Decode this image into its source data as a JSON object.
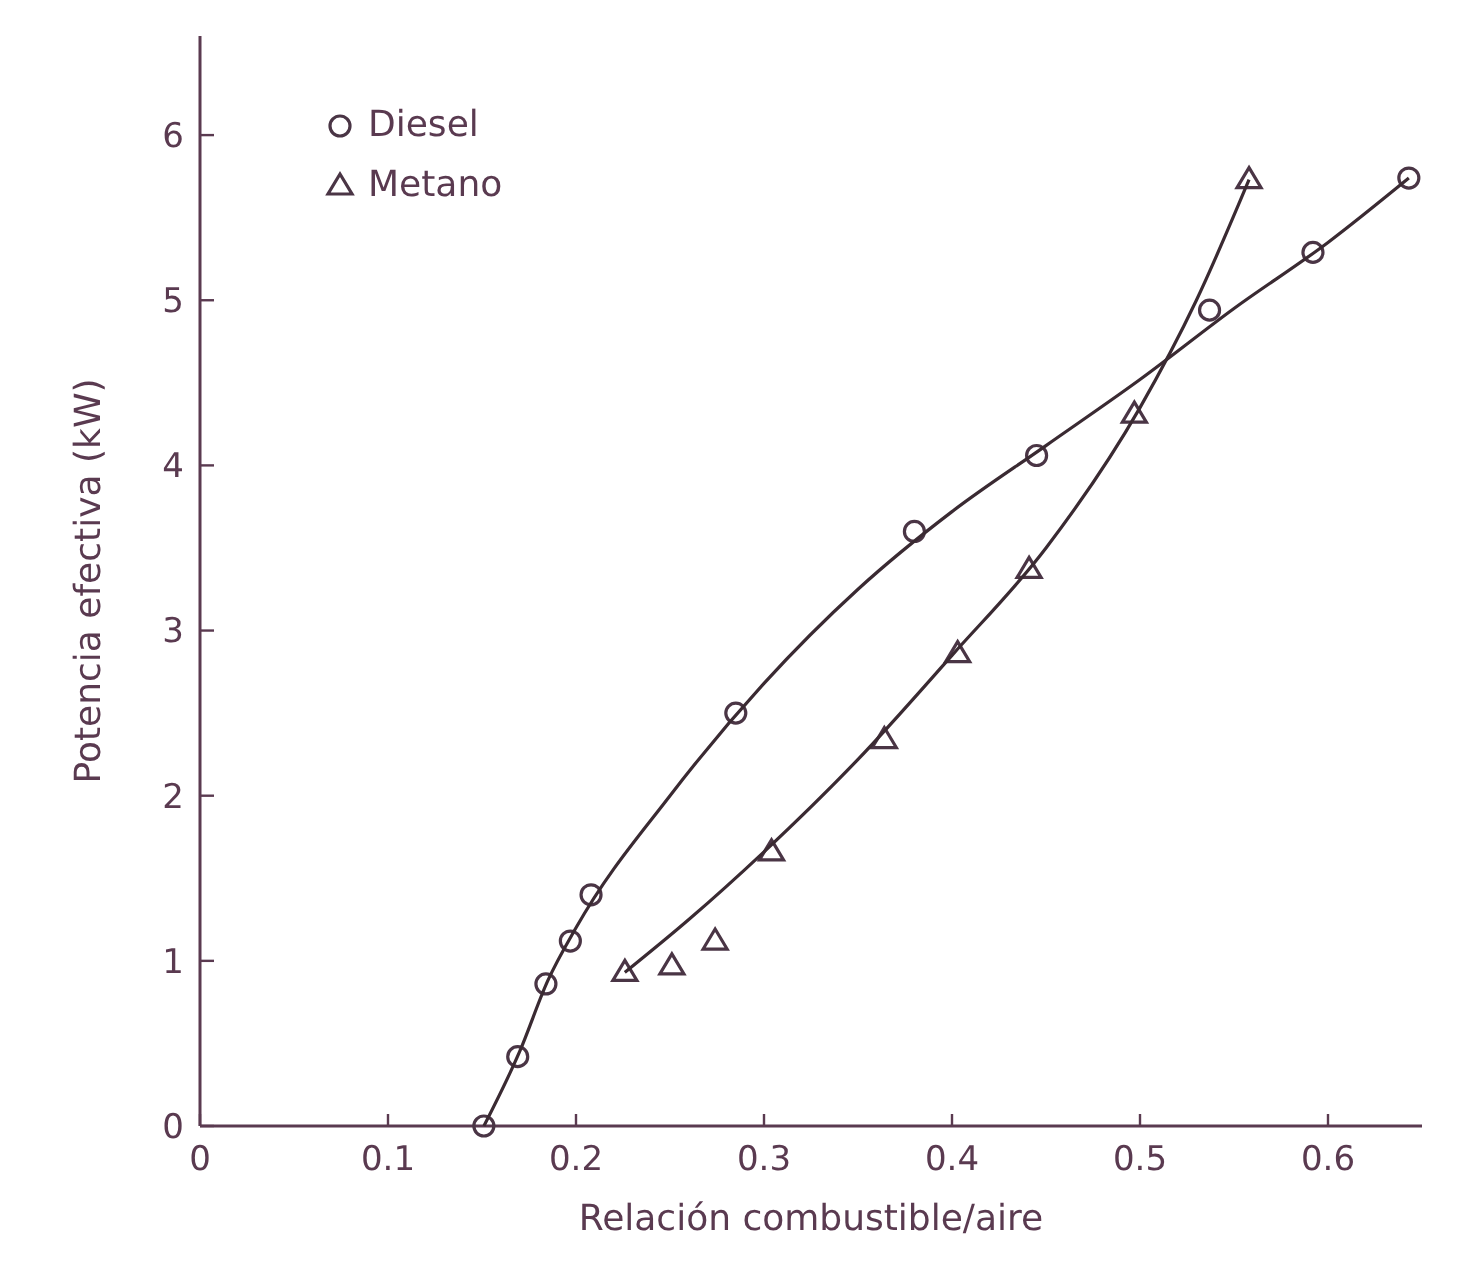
{
  "chart_data": {
    "type": "scatter",
    "xlabel": "Relación combustible/aire",
    "ylabel": "Potencia efectiva (kW)",
    "xlim": [
      0,
      0.65
    ],
    "ylim": [
      0,
      6.6
    ],
    "xticks": [
      0,
      0.1,
      0.2,
      0.3,
      0.4,
      0.5,
      0.6
    ],
    "yticks": [
      0,
      1,
      2,
      3,
      4,
      5,
      6
    ],
    "grid": false,
    "legend": "top left",
    "series": [
      {
        "name": "Diesel",
        "marker": "circle",
        "color": "#4a3545",
        "x": [
          0.151,
          0.169,
          0.184,
          0.197,
          0.208,
          0.285,
          0.38,
          0.445,
          0.537,
          0.592,
          0.643
        ],
        "values": [
          0,
          0.42,
          0.86,
          1.12,
          1.4,
          2.5,
          3.6,
          4.06,
          4.94,
          5.29,
          5.74
        ]
      },
      {
        "name": "Metano",
        "marker": "triangle",
        "color": "#4a3545",
        "x": [
          0.226,
          0.251,
          0.274,
          0.304,
          0.364,
          0.403,
          0.441,
          0.497,
          0.558
        ],
        "values": [
          0.93,
          0.97,
          1.12,
          1.66,
          2.34,
          2.86,
          3.37,
          4.31,
          5.73
        ]
      },
      {
        "type": "line",
        "marker": "none",
        "color": "#3a2a32",
        "x": [
          0.151,
          0.17,
          0.185,
          0.2,
          0.25,
          0.3,
          0.35,
          0.4,
          0.45,
          0.5,
          0.55,
          0.6,
          0.643
        ],
        "values": [
          0,
          0.45,
          0.88,
          1.2,
          2.0,
          2.68,
          3.25,
          3.72,
          4.12,
          4.52,
          4.95,
          5.35,
          5.74
        ]
      },
      {
        "type": "line",
        "marker": "none",
        "color": "#3a2a32",
        "x": [
          0.226,
          0.26,
          0.3,
          0.35,
          0.4,
          0.45,
          0.5,
          0.53,
          0.558
        ],
        "values": [
          0.93,
          1.25,
          1.66,
          2.22,
          2.85,
          3.5,
          4.35,
          5.0,
          5.73
        ]
      }
    ]
  }
}
